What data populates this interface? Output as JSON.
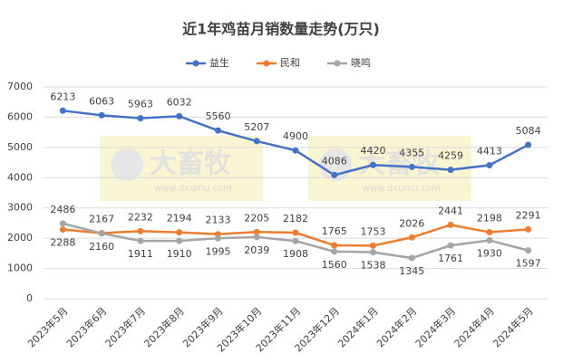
{
  "chart_data": {
    "type": "line",
    "title": "近1年鸡苗月销数量走势(万只)",
    "categories": [
      "2023年5月",
      "2023年6月",
      "2023年7月",
      "2023年8月",
      "2023年9月",
      "2023年10月",
      "2023年11月",
      "2023年12月",
      "2024年1月",
      "2024年2月",
      "2024年3月",
      "2024年4月",
      "2024年5月"
    ],
    "series": [
      {
        "name": "益生",
        "color": "#4472c4",
        "values": [
          6213,
          6063,
          5963,
          6032,
          5560,
          5207,
          4900,
          4086,
          4420,
          4355,
          4259,
          4413,
          5084
        ]
      },
      {
        "name": "民和",
        "color": "#ed7d31",
        "values": [
          2288,
          2167,
          2232,
          2194,
          2133,
          2205,
          2182,
          1765,
          1753,
          2026,
          2441,
          2198,
          2291
        ]
      },
      {
        "name": "晓鸣",
        "color": "#a5a5a5",
        "values": [
          2486,
          2160,
          1911,
          1910,
          1995,
          2039,
          1908,
          1560,
          1538,
          1345,
          1761,
          1930,
          1597
        ]
      }
    ],
    "ylim": [
      0,
      7000
    ],
    "yticks": [
      0,
      1000,
      2000,
      3000,
      4000,
      5000,
      6000,
      7000
    ],
    "grid": true,
    "legend": "top",
    "watermark": {
      "name": "大畜牧",
      "url": "www.dxumu.com"
    }
  }
}
